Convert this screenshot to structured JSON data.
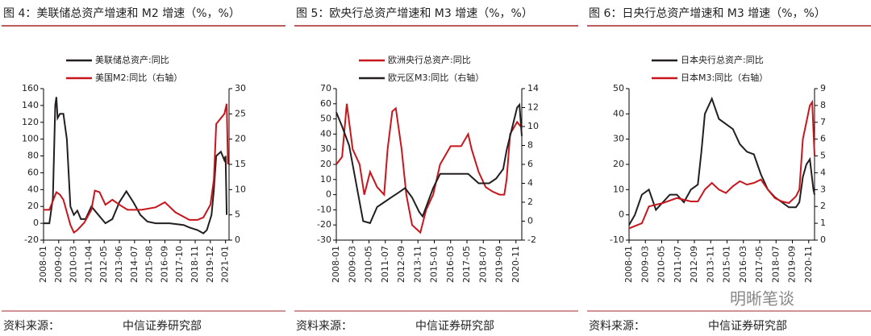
{
  "chart_data": [
    {
      "type": "line",
      "title": "图 4：美联储总资产增速和 M2 增速（%，%）",
      "source_label": "资料来源：",
      "source": "中信证券研究部",
      "xlim": [
        "2008-01",
        "2021-04"
      ],
      "xticks": [
        "2008-01",
        "2009-02",
        "2010-03",
        "2011-04",
        "2012-05",
        "2013-06",
        "2014-07",
        "2015-08",
        "2016-09",
        "2017-10",
        "2018-11",
        "2019-12",
        "2021-01"
      ],
      "ylim": [
        -20,
        160
      ],
      "yticks": [
        -20,
        0,
        20,
        40,
        60,
        80,
        100,
        120,
        140,
        160
      ],
      "y2lim": [
        0,
        30
      ],
      "y2ticks": [
        0,
        5,
        10,
        15,
        20,
        25,
        30
      ],
      "series": [
        {
          "name": "美联储总资产:同比",
          "color": "#231f20",
          "x": [
            "2008-01",
            "2008-06",
            "2008-09",
            "2008-11",
            "2008-12",
            "2009-01",
            "2009-03",
            "2009-06",
            "2009-09",
            "2009-12",
            "2010-03",
            "2010-06",
            "2010-09",
            "2011-01",
            "2011-06",
            "2011-12",
            "2012-06",
            "2012-12",
            "2013-06",
            "2013-12",
            "2014-06",
            "2014-12",
            "2015-06",
            "2016-01",
            "2017-01",
            "2018-01",
            "2018-06",
            "2019-01",
            "2019-06",
            "2019-09",
            "2020-01",
            "2020-03",
            "2020-05",
            "2020-09",
            "2020-12",
            "2021-01",
            "2021-02"
          ],
          "values": [
            0,
            0,
            30,
            140,
            150,
            125,
            130,
            130,
            100,
            20,
            10,
            15,
            5,
            5,
            20,
            10,
            0,
            5,
            25,
            38,
            25,
            10,
            2,
            0,
            0,
            -2,
            -5,
            -8,
            -12,
            -8,
            10,
            40,
            80,
            85,
            75,
            80,
            10
          ]
        },
        {
          "name": "美国M2:同比（右轴）",
          "color": "#c8161d",
          "axis": "y2",
          "x": [
            "2008-01",
            "2008-06",
            "2008-12",
            "2009-03",
            "2009-06",
            "2009-12",
            "2010-03",
            "2010-06",
            "2010-12",
            "2011-06",
            "2011-09",
            "2012-01",
            "2012-06",
            "2012-12",
            "2013-06",
            "2014-01",
            "2015-01",
            "2016-01",
            "2016-09",
            "2017-06",
            "2018-06",
            "2019-01",
            "2019-06",
            "2019-12",
            "2020-03",
            "2020-05",
            "2020-12",
            "2021-02",
            "2021-03"
          ],
          "values": [
            6,
            6,
            9.5,
            9,
            8,
            3,
            1.5,
            2,
            3.5,
            6,
            9.8,
            9.5,
            7,
            8,
            7,
            6,
            6,
            6.5,
            7.5,
            5.5,
            4,
            4,
            4.5,
            7,
            12,
            23,
            25,
            27,
            15
          ]
        }
      ]
    },
    {
      "type": "line",
      "title": "图 5：欧央行总资产增速和 M3 增速（%，%）",
      "source_label": "资料来源：",
      "source": "中信证券研究部",
      "xlim": [
        "2008-01",
        "2021-04"
      ],
      "xticks": [
        "2008-01",
        "2009-03",
        "2010-05",
        "2011-07",
        "2012-09",
        "2013-11",
        "2015-01",
        "2016-03",
        "2017-05",
        "2018-07",
        "2019-09",
        "2020-11"
      ],
      "ylim": [
        -30,
        70
      ],
      "yticks": [
        -30,
        -20,
        -10,
        0,
        10,
        20,
        30,
        40,
        50,
        60,
        70
      ],
      "y2lim": [
        -2,
        14
      ],
      "y2ticks": [
        -2,
        0,
        2,
        4,
        6,
        8,
        10,
        12,
        14
      ],
      "series": [
        {
          "name": "欧洲央行总资产:同比",
          "color": "#c8161d",
          "x": [
            "2008-01",
            "2008-06",
            "2008-10",
            "2009-03",
            "2009-09",
            "2010-01",
            "2010-06",
            "2010-12",
            "2011-06",
            "2011-09",
            "2012-01",
            "2012-04",
            "2012-09",
            "2013-01",
            "2013-06",
            "2014-01",
            "2014-06",
            "2014-12",
            "2015-06",
            "2016-03",
            "2016-12",
            "2017-06",
            "2017-09",
            "2018-03",
            "2018-09",
            "2019-03",
            "2019-09",
            "2020-01",
            "2020-03",
            "2020-06",
            "2020-12",
            "2021-03"
          ],
          "values": [
            20,
            25,
            60,
            30,
            20,
            0,
            15,
            5,
            0,
            30,
            55,
            57,
            30,
            0,
            -20,
            -25,
            -10,
            0,
            20,
            32,
            32,
            40,
            30,
            15,
            5,
            2,
            0,
            0,
            10,
            40,
            48,
            45
          ]
        },
        {
          "name": "欧元区M3:同比（右轴）",
          "color": "#231f20",
          "axis": "y2",
          "x": [
            "2008-01",
            "2008-06",
            "2008-12",
            "2009-06",
            "2009-12",
            "2010-06",
            "2010-12",
            "2011-06",
            "2011-12",
            "2012-06",
            "2012-12",
            "2013-06",
            "2013-12",
            "2014-03",
            "2014-06",
            "2014-12",
            "2015-06",
            "2016-01",
            "2016-12",
            "2017-06",
            "2018-03",
            "2018-12",
            "2019-06",
            "2019-12",
            "2020-03",
            "2020-06",
            "2020-12",
            "2021-02",
            "2021-04"
          ],
          "values": [
            11.5,
            10,
            8,
            4,
            0,
            -0.2,
            1.5,
            2,
            2.5,
            3,
            3.5,
            2.5,
            1,
            0.5,
            1.5,
            3.5,
            5,
            5,
            5,
            5,
            4,
            4,
            4.5,
            5.5,
            7.5,
            9,
            12,
            12.3,
            9
          ]
        }
      ]
    },
    {
      "type": "line",
      "title": "图 6：日央行总资产增速和 M3 增速（%，%）",
      "source_label": "资料来源：",
      "source": "中信证券研究部",
      "xlim": [
        "2008-01",
        "2021-04"
      ],
      "xticks": [
        "2008-01",
        "2009-03",
        "2010-05",
        "2011-07",
        "2012-09",
        "2013-11",
        "2015-01",
        "2016-03",
        "2017-05",
        "2018-07",
        "2019-09",
        "2020-11"
      ],
      "ylim": [
        -10,
        50
      ],
      "yticks": [
        -10,
        0,
        10,
        20,
        30,
        40,
        50
      ],
      "y2lim": [
        0,
        9
      ],
      "y2ticks": [
        0,
        1,
        2,
        3,
        4,
        5,
        6,
        7,
        8,
        9
      ],
      "series": [
        {
          "name": "日本央行总资产:同比",
          "color": "#231f20",
          "x": [
            "2008-01",
            "2008-06",
            "2008-12",
            "2009-06",
            "2009-12",
            "2010-06",
            "2010-12",
            "2011-06",
            "2011-12",
            "2012-06",
            "2012-12",
            "2013-03",
            "2013-06",
            "2013-12",
            "2014-06",
            "2014-12",
            "2015-06",
            "2015-12",
            "2016-06",
            "2016-12",
            "2017-06",
            "2017-12",
            "2018-06",
            "2018-12",
            "2019-06",
            "2019-12",
            "2020-03",
            "2020-06",
            "2020-09",
            "2020-12",
            "2021-03",
            "2021-04"
          ],
          "values": [
            -4,
            0,
            8,
            10,
            2,
            5,
            8,
            8,
            5,
            10,
            12,
            25,
            40,
            46,
            38,
            36,
            34,
            28,
            25,
            24,
            16,
            10,
            7,
            5,
            3,
            3,
            5,
            15,
            20,
            22,
            10,
            8
          ]
        },
        {
          "name": "日本M3:同比（右轴）",
          "color": "#c8161d",
          "axis": "y2",
          "x": [
            "2008-01",
            "2008-12",
            "2009-06",
            "2010-06",
            "2011-06",
            "2012-06",
            "2012-12",
            "2013-06",
            "2013-12",
            "2014-06",
            "2014-12",
            "2015-06",
            "2015-12",
            "2016-06",
            "2016-12",
            "2017-06",
            "2017-12",
            "2018-06",
            "2018-12",
            "2019-06",
            "2019-12",
            "2020-03",
            "2020-06",
            "2020-12",
            "2021-02",
            "2021-04"
          ],
          "values": [
            0.7,
            1,
            2,
            2.2,
            2.5,
            2.3,
            2.3,
            3,
            3.4,
            3,
            2.8,
            3.2,
            3.5,
            3.3,
            3.4,
            3.6,
            3,
            2.5,
            2.3,
            2.2,
            2.6,
            3,
            6,
            8,
            8.2,
            5
          ]
        }
      ]
    }
  ],
  "watermark": "明晰笔谈"
}
